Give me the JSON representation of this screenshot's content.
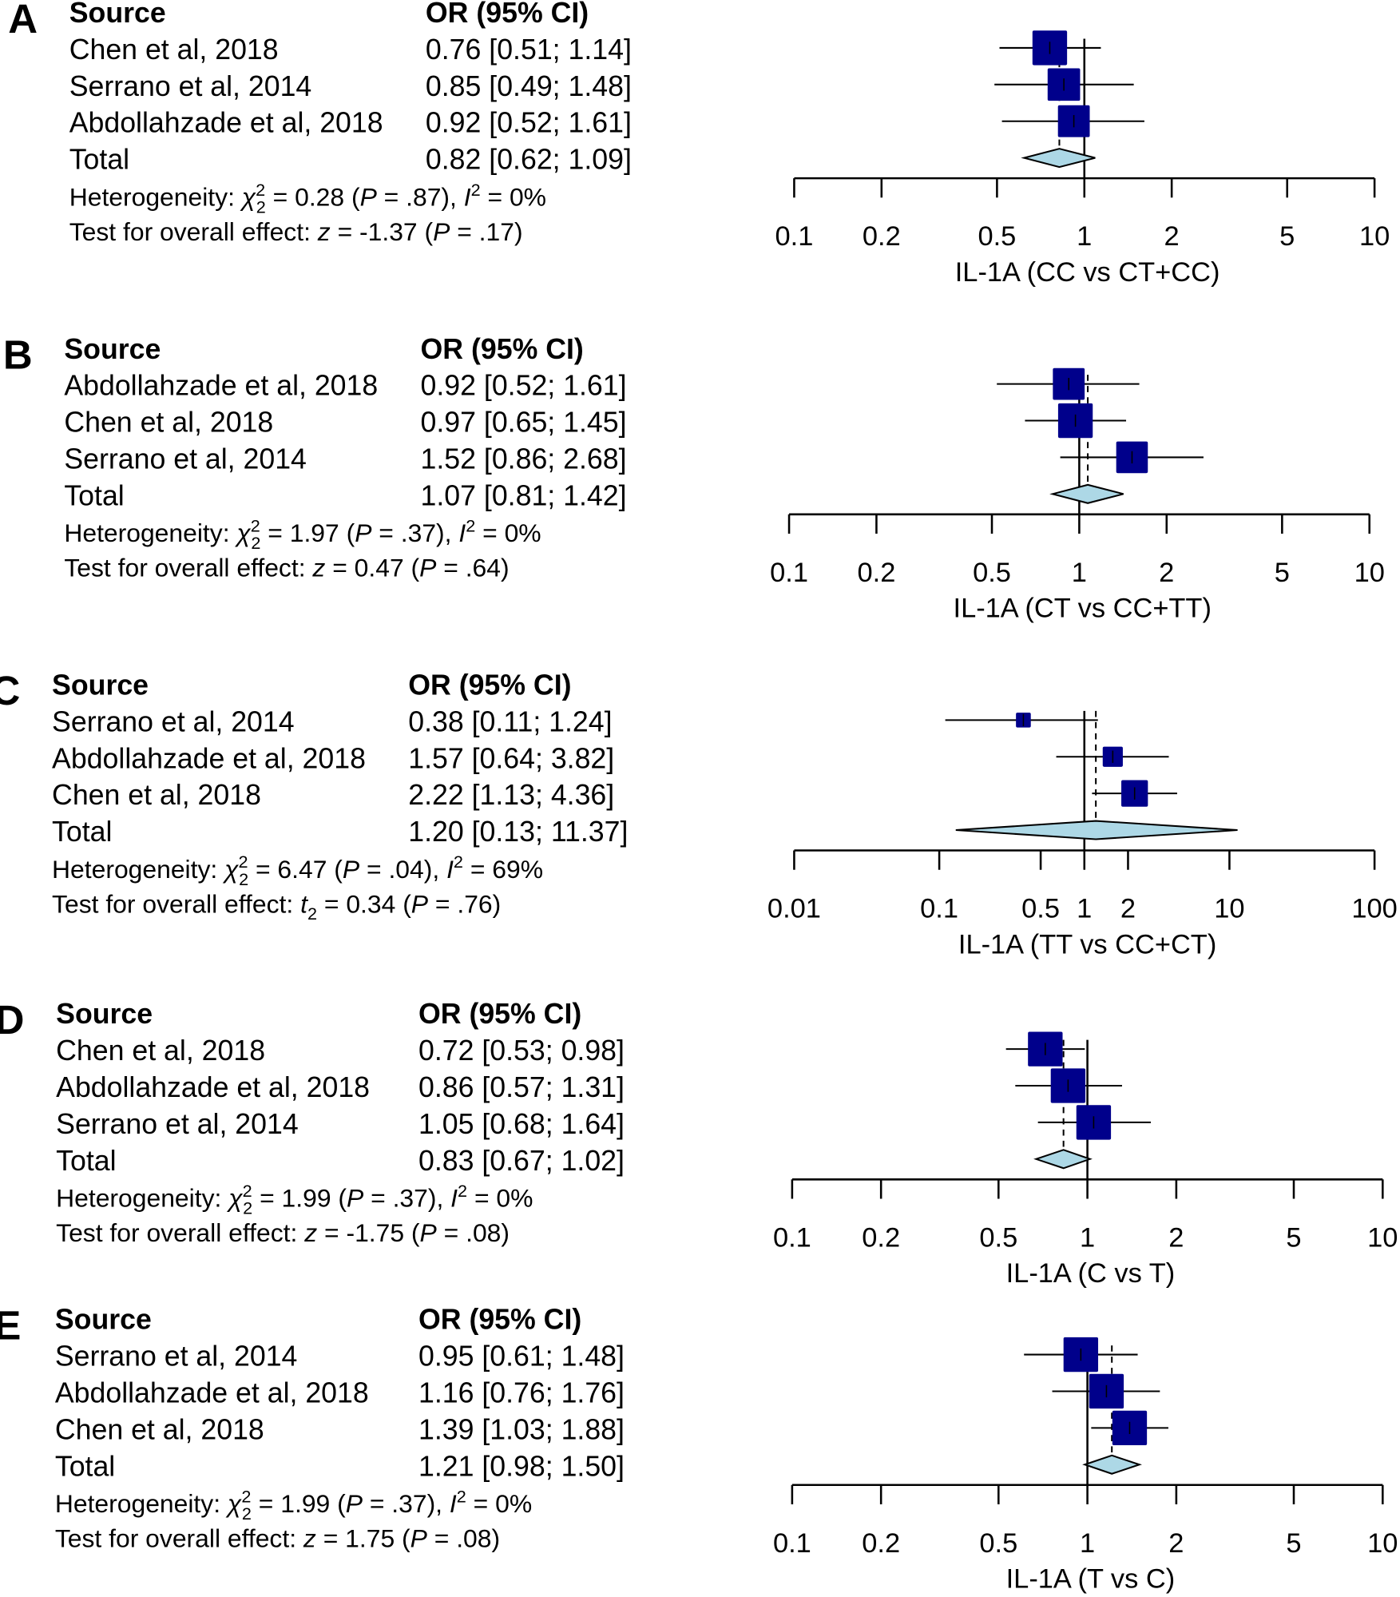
{
  "chart_data": [
    {
      "type": "forest",
      "panel_label": "A",
      "header_source": "Source",
      "header_or": "OR (95% CI)",
      "studies": [
        {
          "name": "Chen et al, 2018",
          "or": 0.76,
          "lo": 0.51,
          "hi": 1.14,
          "text": "0.76 [0.51; 1.14]"
        },
        {
          "name": "Serrano et al, 2014",
          "or": 0.85,
          "lo": 0.49,
          "hi": 1.48,
          "text": "0.85 [0.49; 1.48]"
        },
        {
          "name": "Abdollahzade et al, 2018",
          "or": 0.92,
          "lo": 0.52,
          "hi": 1.61,
          "text": "0.92 [0.52; 1.61]"
        }
      ],
      "total": {
        "name": "Total",
        "or": 0.82,
        "lo": 0.62,
        "hi": 1.09,
        "text": "0.82 [0.62; 1.09]"
      },
      "heterogeneity": {
        "label": "Heterogeneity: ",
        "chi2": "0.28",
        "p": ".87",
        "i2": "0%"
      },
      "overall": {
        "label": "Test for overall effect: ",
        "stat": "z",
        "stat_sub": "",
        "value": "-1.37",
        "p": ".17"
      },
      "xscale": "log",
      "xlim": [
        0.1,
        10
      ],
      "ticks": [
        "0.1",
        "0.2",
        "0.5",
        "1",
        "2",
        "5",
        "10"
      ],
      "xlabel": "IL-1A (CC vs CT+CC)"
    },
    {
      "type": "forest",
      "panel_label": "B",
      "header_source": "Source",
      "header_or": "OR (95% CI)",
      "studies": [
        {
          "name": "Abdollahzade et al, 2018",
          "or": 0.92,
          "lo": 0.52,
          "hi": 1.61,
          "text": "0.92 [0.52; 1.61]"
        },
        {
          "name": "Chen et al, 2018",
          "or": 0.97,
          "lo": 0.65,
          "hi": 1.45,
          "text": "0.97 [0.65; 1.45]"
        },
        {
          "name": "Serrano et al, 2014",
          "or": 1.52,
          "lo": 0.86,
          "hi": 2.68,
          "text": "1.52 [0.86; 2.68]"
        }
      ],
      "total": {
        "name": "Total",
        "or": 1.07,
        "lo": 0.81,
        "hi": 1.42,
        "text": "1.07 [0.81; 1.42]"
      },
      "heterogeneity": {
        "label": "Heterogeneity: ",
        "chi2": "1.97",
        "p": ".37",
        "i2": "0%"
      },
      "overall": {
        "label": "Test for overall effect: ",
        "stat": "z",
        "stat_sub": "",
        "value": "0.47",
        "p": ".64"
      },
      "xscale": "log",
      "xlim": [
        0.1,
        10
      ],
      "ticks": [
        "0.1",
        "0.2",
        "0.5",
        "1",
        "2",
        "5",
        "10"
      ],
      "xlabel": "IL-1A (CT vs CC+TT)"
    },
    {
      "type": "forest",
      "panel_label": "C",
      "header_source": "Source",
      "header_or": "OR (95% CI)",
      "studies": [
        {
          "name": "Serrano et al, 2014",
          "or": 0.38,
          "lo": 0.11,
          "hi": 1.24,
          "text": "0.38 [0.11;  1.24]"
        },
        {
          "name": "Abdollahzade et al, 2018",
          "or": 1.57,
          "lo": 0.64,
          "hi": 3.82,
          "text": "1.57 [0.64;  3.82]"
        },
        {
          "name": "Chen et al, 2018",
          "or": 2.22,
          "lo": 1.13,
          "hi": 4.36,
          "text": "2.22 [1.13;  4.36]"
        }
      ],
      "total": {
        "name": "Total",
        "or": 1.2,
        "lo": 0.13,
        "hi": 11.37,
        "text": "1.20 [0.13; 11.37]"
      },
      "heterogeneity": {
        "label": "Heterogeneity: ",
        "chi2": "6.47",
        "p": ".04",
        "i2": "69%"
      },
      "overall": {
        "label": "Test for overall effect: ",
        "stat": "t",
        "stat_sub": "2",
        "value": "0.34",
        "p": ".76"
      },
      "xscale": "log",
      "xlim": [
        0.01,
        100
      ],
      "ticks": [
        "0.01",
        "0.1",
        "0.5",
        "1",
        "2",
        "10",
        "100"
      ],
      "xlabel": "IL-1A (TT vs CC+CT)"
    },
    {
      "type": "forest",
      "panel_label": "D",
      "header_source": "Source",
      "header_or": "OR (95% CI)",
      "studies": [
        {
          "name": "Chen et al, 2018",
          "or": 0.72,
          "lo": 0.53,
          "hi": 0.98,
          "text": "0.72 [0.53; 0.98]"
        },
        {
          "name": "Abdollahzade et al, 2018",
          "or": 0.86,
          "lo": 0.57,
          "hi": 1.31,
          "text": "0.86 [0.57; 1.31]"
        },
        {
          "name": "Serrano et al, 2014",
          "or": 1.05,
          "lo": 0.68,
          "hi": 1.64,
          "text": "1.05 [0.68; 1.64]"
        }
      ],
      "total": {
        "name": "Total",
        "or": 0.83,
        "lo": 0.67,
        "hi": 1.02,
        "text": "0.83 [0.67; 1.02]"
      },
      "heterogeneity": {
        "label": "Heterogeneity: ",
        "chi2": "1.99",
        "p": ".37",
        "i2": "0%"
      },
      "overall": {
        "label": "Test for overall effect: ",
        "stat": "z",
        "stat_sub": "",
        "value": "-1.75",
        "p": ".08"
      },
      "xscale": "log",
      "xlim": [
        0.1,
        10
      ],
      "ticks": [
        "0.1",
        "0.2",
        "0.5",
        "1",
        "2",
        "5",
        "10"
      ],
      "xlabel": "IL-1A (C vs T)"
    },
    {
      "type": "forest",
      "panel_label": "E",
      "header_source": "Source",
      "header_or": "OR (95% CI)",
      "studies": [
        {
          "name": "Serrano et al, 2014",
          "or": 0.95,
          "lo": 0.61,
          "hi": 1.48,
          "text": "0.95 [0.61; 1.48]"
        },
        {
          "name": "Abdollahzade et al, 2018",
          "or": 1.16,
          "lo": 0.76,
          "hi": 1.76,
          "text": "1.16 [0.76; 1.76]"
        },
        {
          "name": "Chen et al, 2018",
          "or": 1.39,
          "lo": 1.03,
          "hi": 1.88,
          "text": "1.39 [1.03; 1.88]"
        }
      ],
      "total": {
        "name": "Total",
        "or": 1.21,
        "lo": 0.98,
        "hi": 1.5,
        "text": "1.21 [0.98; 1.50]"
      },
      "heterogeneity": {
        "label": "Heterogeneity: ",
        "chi2": "1.99",
        "p": ".37",
        "i2": "0%"
      },
      "overall": {
        "label": "Test for overall effect: ",
        "stat": "z",
        "stat_sub": "",
        "value": "1.75",
        "p": ".08"
      },
      "xscale": "log",
      "xlim": [
        0.1,
        10
      ],
      "ticks": [
        "0.1",
        "0.2",
        "0.5",
        "1",
        "2",
        "5",
        "10"
      ],
      "xlabel": "IL-1A (T vs C)"
    }
  ],
  "colors": {
    "square": "#00008B",
    "diamond": "#ADD8E6",
    "line": "#000000"
  }
}
